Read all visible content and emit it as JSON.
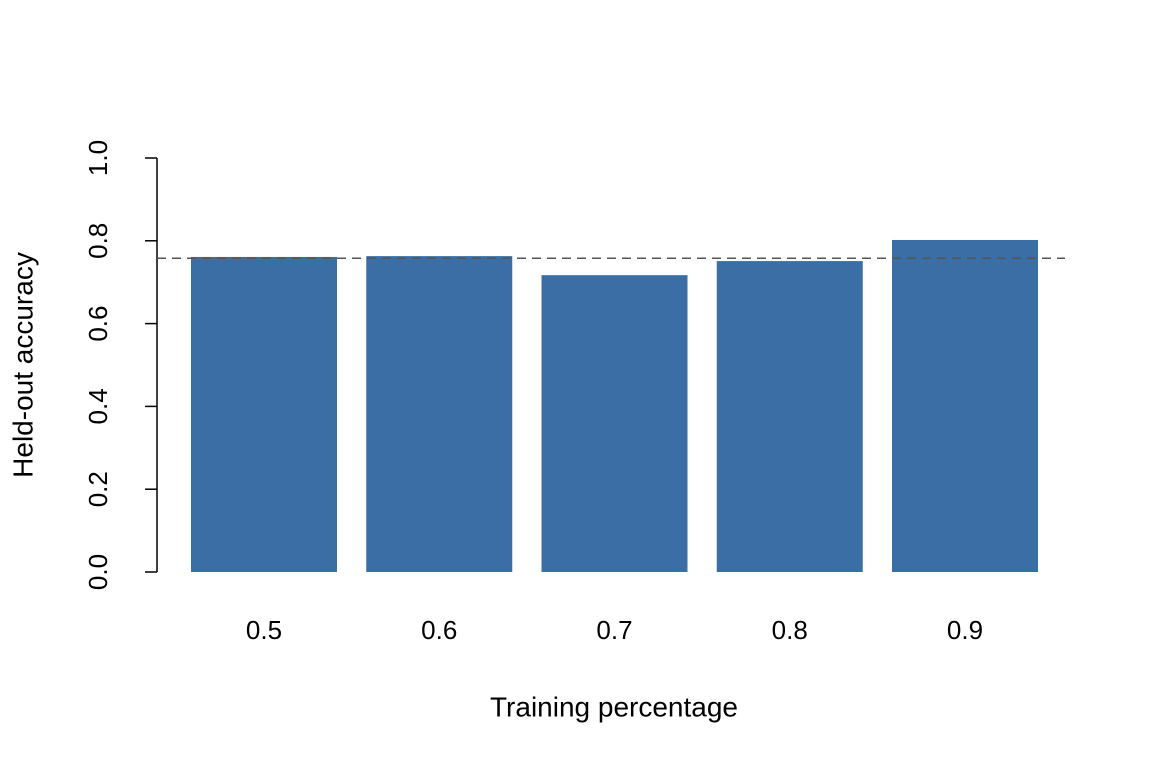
{
  "chart_data": {
    "type": "bar",
    "categories": [
      "0.5",
      "0.6",
      "0.7",
      "0.8",
      "0.9"
    ],
    "values": [
      0.761,
      0.763,
      0.717,
      0.751,
      0.802
    ],
    "color": "#3a6ea5",
    "xlabel": "Training percentage",
    "ylabel": "Held-out accuracy",
    "ylim": [
      0,
      1
    ],
    "yticks": [
      {
        "value": 0,
        "label": "0.0"
      },
      0.2,
      0.4,
      0.6,
      0.8,
      {
        "value": 1,
        "label": "1.0"
      }
    ],
    "reference_line": {
      "value": 0.758,
      "color": "#555555",
      "style": "dashed"
    },
    "grid": false
  }
}
